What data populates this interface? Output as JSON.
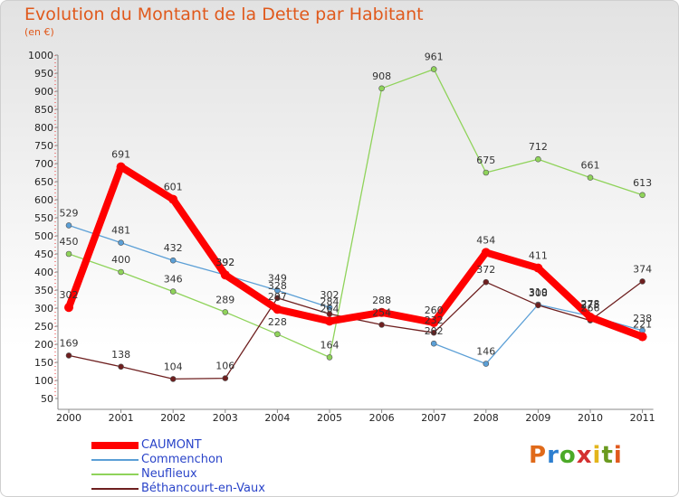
{
  "title": "Evolution du Montant de la Dette par Habitant",
  "subtitle": "(en €)",
  "brand": "Proxiti",
  "brand_colors": [
    "#e06a1a",
    "#2d7fd0",
    "#4caa28",
    "#d43030",
    "#e3b51c",
    "#6a9a1f",
    "#e0591c"
  ],
  "chart_data": {
    "type": "line",
    "x": [
      "2000",
      "2001",
      "2002",
      "2003",
      "2004",
      "2005",
      "2006",
      "2007",
      "2008",
      "2009",
      "2010",
      "2011"
    ],
    "ylim": [
      50,
      1000
    ],
    "yticks": [
      50,
      100,
      150,
      200,
      250,
      300,
      350,
      400,
      450,
      500,
      550,
      600,
      650,
      700,
      750,
      800,
      850,
      900,
      950,
      1000
    ],
    "grid": false,
    "legend_position": "bottom-left",
    "series": [
      {
        "name": "CAUMONT",
        "color": "#ff0000",
        "values": [
          302,
          691,
          601,
          392,
          297,
          264,
          288,
          260,
          454,
          411,
          275,
          221
        ],
        "labels": [
          "302",
          "691",
          "601",
          "392",
          "297",
          "264",
          "288",
          "260",
          "454",
          "411",
          "275",
          "221"
        ]
      },
      {
        "name": "Commenchon",
        "color": "#5b9fd6",
        "values": [
          529,
          481,
          432,
          392,
          349,
          302,
          null,
          202,
          146,
          310,
          278,
          238
        ],
        "labels": [
          "529",
          "481",
          "432",
          "392",
          "349",
          "302",
          "",
          "202",
          "146",
          "310",
          "278",
          "238"
        ]
      },
      {
        "name": "Neuflieux",
        "color": "#8fd35a",
        "values": [
          450,
          400,
          346,
          289,
          228,
          164,
          908,
          961,
          675,
          712,
          661,
          613
        ],
        "labels": [
          "450",
          "400",
          "346",
          "289",
          "228",
          "164",
          "908",
          "961",
          "675",
          "712",
          "661",
          "613"
        ]
      },
      {
        "name": "Béthancourt-en-Vaux",
        "color": "#6e1f1f",
        "values": [
          169,
          138,
          104,
          106,
          328,
          284,
          254,
          232,
          372,
          308,
          266,
          374
        ],
        "labels": [
          "169",
          "138",
          "104",
          "106",
          "328",
          "284",
          "254",
          "232",
          "372",
          "308",
          "266",
          "374"
        ]
      }
    ]
  }
}
